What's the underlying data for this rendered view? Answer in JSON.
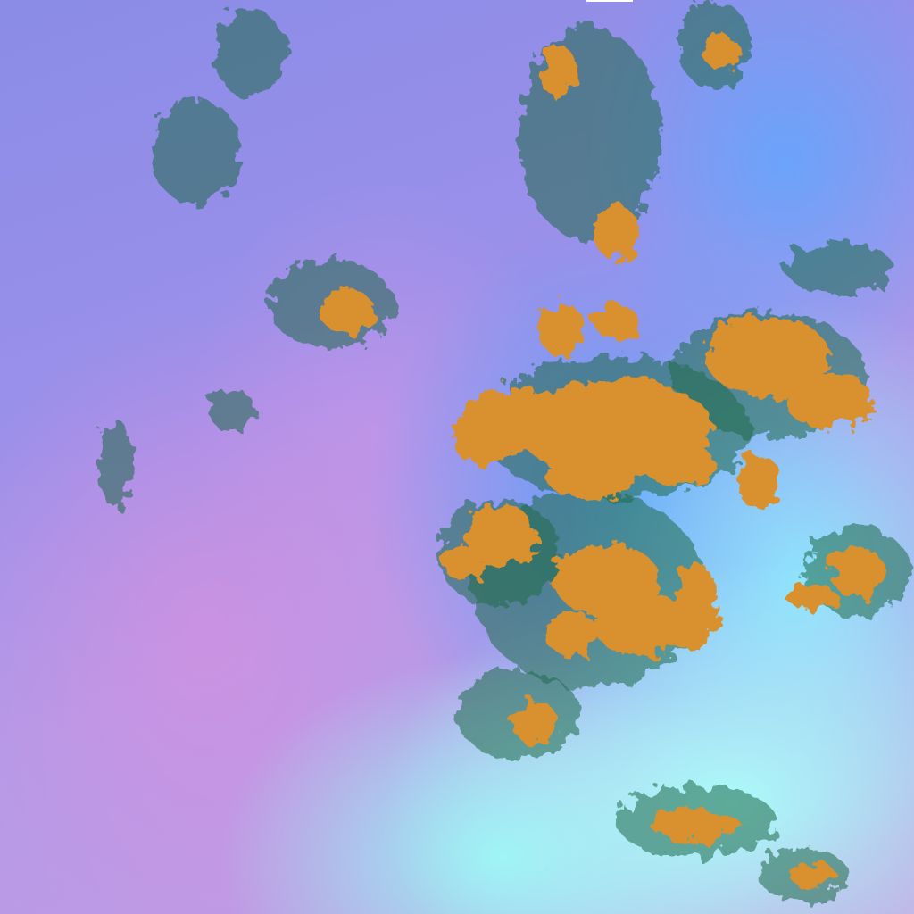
{
  "image": {
    "description_label": "satellite-false-color",
    "colors": {
      "ocean": "#9a90ea",
      "haze": "#d79ae0",
      "land": "#a8fff8",
      "cloud_top": "#d9902f",
      "cloud_edge": "#1f6a4a"
    }
  }
}
